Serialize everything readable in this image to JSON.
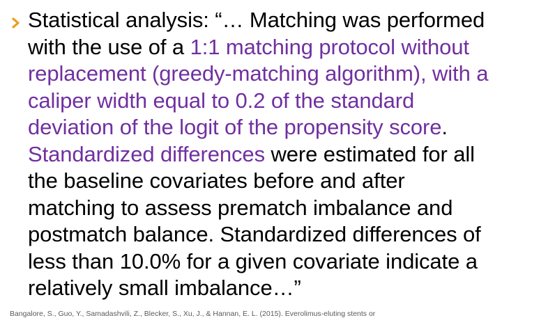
{
  "colors": {
    "text": "#000000",
    "highlight": "#7030a0",
    "bullet": "#e8a020",
    "citation": "#5a5a5a",
    "background": "#ffffff"
  },
  "bullet": {
    "icon": "chevron-right-icon"
  },
  "quote": {
    "l1": "Statistical analysis: “… Matching was performed",
    "l2a": "with the use of a ",
    "l2b": "1:1 matching protocol without",
    "l3": "replacement (greedy-matching algorithm), with a",
    "l4": "caliper width equal to 0.2 of the standard",
    "l5a": "deviation of the logit of the propensity score",
    "l5b": ".",
    "l6a": "Standardized differences",
    "l6b": " were estimated for all",
    "l7": "the baseline covariates before and after",
    "l8": "matching to assess prematch imbalance and",
    "l9": "postmatch balance. Standardized differences of",
    "l10": "less than 10.0% for a given covariate indicate a",
    "l11": "relatively small imbalance…”"
  },
  "citation": "Bangalore, S., Guo, Y., Samadashvili, Z., Blecker, S., Xu, J., & Hannan, E. L. (2015). Everolimus-eluting stents or"
}
